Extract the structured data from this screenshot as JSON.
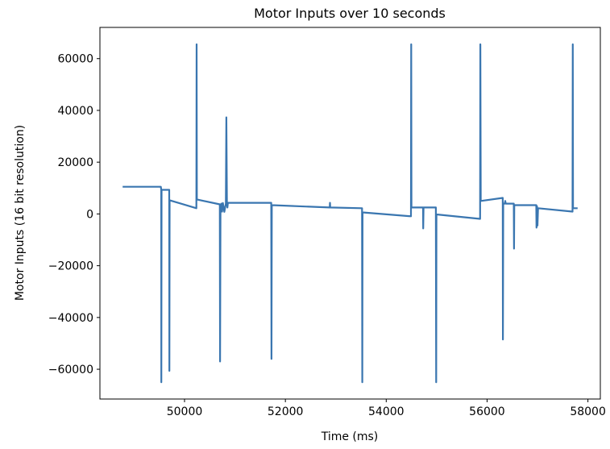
{
  "chart_data": {
    "type": "line",
    "title": "Motor Inputs over 10 seconds",
    "xlabel": "Time (ms)",
    "ylabel": "Motor Inputs (16 bit resolution)",
    "xlim": [
      48322,
      58246
    ],
    "ylim": [
      -71500,
      72060
    ],
    "xticks": [
      50000,
      52000,
      54000,
      56000,
      58000
    ],
    "yticks": [
      -60000,
      -40000,
      -20000,
      0,
      20000,
      40000,
      60000
    ],
    "xtick_labels": [
      "50000",
      "52000",
      "54000",
      "56000",
      "58000"
    ],
    "ytick_labels": [
      "−60000",
      "−40000",
      "−20000",
      "0",
      "20000",
      "40000",
      "60000"
    ],
    "grid": false,
    "series": [
      {
        "color": "#3a76b0",
        "points": [
          [
            48773,
            10500
          ],
          [
            49530,
            10500
          ],
          [
            49538,
            9300
          ],
          [
            49540,
            -65000
          ],
          [
            49545,
            9300
          ],
          [
            49697,
            9300
          ],
          [
            49700,
            -60600
          ],
          [
            49705,
            5300
          ],
          [
            50235,
            2200
          ],
          [
            50239,
            65535
          ],
          [
            50245,
            5600
          ],
          [
            50700,
            3700
          ],
          [
            50705,
            -57000
          ],
          [
            50712,
            900
          ],
          [
            50730,
            4000
          ],
          [
            50745,
            900
          ],
          [
            50760,
            4200
          ],
          [
            50790,
            800
          ],
          [
            50820,
            4000
          ],
          [
            50829,
            37300
          ],
          [
            50840,
            4300
          ],
          [
            50850,
            2500
          ],
          [
            50860,
            4300
          ],
          [
            51720,
            4300
          ],
          [
            51725,
            -56000
          ],
          [
            51730,
            3400
          ],
          [
            52880,
            2500
          ],
          [
            52885,
            4300
          ],
          [
            52890,
            2500
          ],
          [
            53520,
            2200
          ],
          [
            53525,
            -65000
          ],
          [
            53530,
            600
          ],
          [
            54490,
            -900
          ],
          [
            54495,
            65535
          ],
          [
            54500,
            2500
          ],
          [
            54730,
            2500
          ],
          [
            54734,
            -5600
          ],
          [
            54740,
            2500
          ],
          [
            54985,
            2500
          ],
          [
            54990,
            -65000
          ],
          [
            54995,
            -200
          ],
          [
            55862,
            -1900
          ],
          [
            55866,
            65535
          ],
          [
            55875,
            5000
          ],
          [
            56310,
            6200
          ],
          [
            56314,
            -48500
          ],
          [
            56320,
            4000
          ],
          [
            56350,
            4000
          ],
          [
            56360,
            5000
          ],
          [
            56370,
            4000
          ],
          [
            56530,
            4000
          ],
          [
            56535,
            -13400
          ],
          [
            56540,
            3400
          ],
          [
            56975,
            3400
          ],
          [
            56980,
            -5300
          ],
          [
            56990,
            3000
          ],
          [
            57000,
            -4500
          ],
          [
            57010,
            2200
          ],
          [
            57695,
            900
          ],
          [
            57699,
            65535
          ],
          [
            57705,
            2200
          ],
          [
            57795,
            2200
          ]
        ]
      }
    ]
  }
}
